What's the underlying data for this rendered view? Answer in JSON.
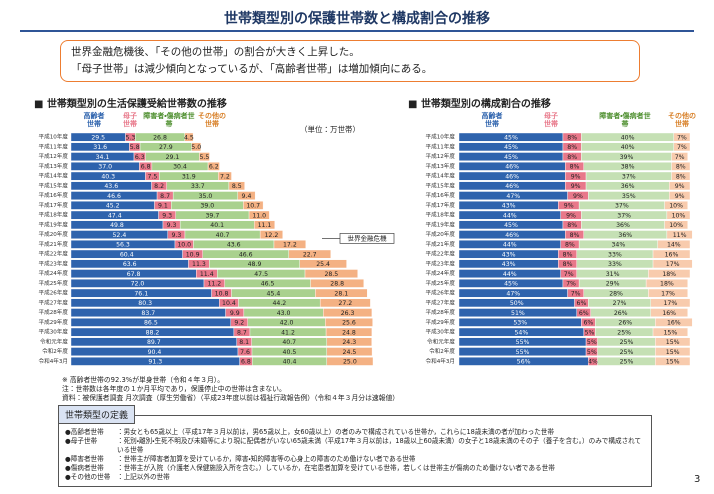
{
  "title": "世帯類型別の保護世帯数と構成割合の推移",
  "summary": [
    "世界金融危機後、「その他の世帯」の割合が大きく上昇した。",
    "「母子世帯」は減少傾向となっているが、「高齢者世帯」は増加傾向にある。"
  ],
  "chart_data": [
    {
      "type": "bar",
      "orientation": "horizontal",
      "stacked": true,
      "title": "世帯類型別の生活保護受給世帯数の推移",
      "unit": "（単位：万世帯）",
      "annotation": "世界金融危機",
      "categories": [
        "平成10年度",
        "平成11年度",
        "平成12年度",
        "平成13年度",
        "平成14年度",
        "平成15年度",
        "平成16年度",
        "平成17年度",
        "平成18年度",
        "平成19年度",
        "平成20年度",
        "平成21年度",
        "平成22年度",
        "平成23年度",
        "平成24年度",
        "平成25年度",
        "平成26年度",
        "平成27年度",
        "平成28年度",
        "平成29年度",
        "平成30年度",
        "令和元年度",
        "令和2年度",
        "令和4年3月"
      ],
      "xlim": [
        0,
        170
      ],
      "series": [
        {
          "name": "高齢者世帯",
          "color": "#2e63ad",
          "values": [
            29.5,
            31.6,
            34.1,
            37,
            40.3,
            43.6,
            46.6,
            45.2,
            47.4,
            49.8,
            52.4,
            56.3,
            60.4,
            63.6,
            67.8,
            72,
            76.1,
            80.3,
            83.7,
            86.5,
            88.2,
            89.7,
            90.4,
            91.3
          ],
          "value_labels": [
            "29.5",
            "31.6",
            "34.1",
            "37.0",
            "40.3",
            "43.6",
            "46.6",
            "45.2",
            "47.4",
            "49.8",
            "52.4",
            "56.3",
            "60.4",
            "63.6",
            "67.8",
            "72.0",
            "76.1",
            "80.3",
            "83.7",
            "86.5",
            "88.2",
            "89.7",
            "90.4",
            "91.3"
          ]
        },
        {
          "name": "母子世帯",
          "color": "#e8788a",
          "values": [
            5.3,
            5.8,
            6.3,
            6.8,
            7.5,
            8.2,
            8.7,
            9.1,
            9.3,
            9.3,
            9.3,
            10,
            10.9,
            11.3,
            11.4,
            11.2,
            10.8,
            10.4,
            9.9,
            9.2,
            8.7,
            8.1,
            7.6,
            6.8
          ],
          "value_labels": [
            "5.3",
            "5.8",
            "6.3",
            "6.8",
            "7.5",
            "8.2",
            "8.7",
            "9.1",
            "9.3",
            "9.3",
            "9.3",
            "10.0",
            "10.9",
            "11.3",
            "11.4",
            "11.2",
            "10.8",
            "10.4",
            "9.9",
            "9.2",
            "8.7",
            "8.1",
            "7.6",
            "6.8"
          ]
        },
        {
          "name": "障害者・傷病者世帯",
          "color": "#a9d18e",
          "values": [
            26.8,
            27.9,
            29.1,
            30.4,
            31.9,
            33.7,
            35,
            39,
            39.7,
            40.1,
            40.7,
            43.6,
            46.6,
            48.9,
            47.5,
            46.5,
            45.4,
            44.2,
            43,
            42,
            41.2,
            40.7,
            40.5,
            40.4
          ],
          "value_labels": [
            "26.8",
            "27.9",
            "29.1",
            "30.4",
            "31.9",
            "33.7",
            "35.0",
            "39.0",
            "39.7",
            "40.1",
            "40.7",
            "43.6",
            "46.6",
            "48.9",
            "47.5",
            "46.5",
            "45.4",
            "44.2",
            "43.0",
            "42.0",
            "41.2",
            "40.7",
            "40.5",
            "40.4"
          ]
        },
        {
          "name": "その他の世帯",
          "color": "#f4b183",
          "values": [
            4.5,
            5,
            5.5,
            6.2,
            7.2,
            8.5,
            9.4,
            10.7,
            11,
            11.1,
            12.2,
            17.2,
            22.7,
            25.4,
            28.5,
            28.8,
            28.1,
            27.2,
            26.3,
            25.6,
            24.8,
            24.3,
            24.5,
            25
          ],
          "value_labels": [
            "4.5",
            "5.0",
            "5.5",
            "6.2",
            "7.2",
            "8.5",
            "9.4",
            "10.7",
            "11.0",
            "11.1",
            "12.2",
            "17.2",
            "22.7",
            "25.4",
            "28.5",
            "28.8",
            "28.1",
            "27.2",
            "26.3",
            "25.6",
            "24.8",
            "24.3",
            "24.5",
            "25.0"
          ]
        }
      ]
    },
    {
      "type": "bar",
      "orientation": "horizontal",
      "stacked": true,
      "title": "世帯類型別の構成割合の推移",
      "categories": [
        "平成10年度",
        "平成11年度",
        "平成12年度",
        "平成13年度",
        "平成14年度",
        "平成15年度",
        "平成16年度",
        "平成17年度",
        "平成18年度",
        "平成19年度",
        "平成20年度",
        "平成21年度",
        "平成22年度",
        "平成23年度",
        "平成24年度",
        "平成25年度",
        "平成26年度",
        "平成27年度",
        "平成28年度",
        "平成29年度",
        "平成30年度",
        "令和元年度",
        "令和2年度",
        "令和4年3月"
      ],
      "xlim": [
        0,
        100
      ],
      "series": [
        {
          "name": "高齢者世帯",
          "color": "#2e63ad",
          "values": [
            45,
            45,
            45,
            46,
            46,
            46,
            47,
            43,
            44,
            45,
            46,
            44,
            43,
            43,
            44,
            45,
            47,
            50,
            51,
            53,
            54,
            55,
            55,
            56
          ],
          "value_labels": [
            "45%",
            "45%",
            "45%",
            "46%",
            "46%",
            "46%",
            "47%",
            "43%",
            "44%",
            "45%",
            "46%",
            "44%",
            "43%",
            "43%",
            "44%",
            "45%",
            "47%",
            "50%",
            "51%",
            "53%",
            "54%",
            "55%",
            "55%",
            "56%"
          ]
        },
        {
          "name": "母子世帯",
          "color": "#e8788a",
          "values": [
            8,
            8,
            8,
            8,
            9,
            9,
            9,
            9,
            9,
            8,
            8,
            8,
            8,
            8,
            7,
            7,
            7,
            6,
            6,
            6,
            5,
            5,
            5,
            4
          ],
          "value_labels": [
            "8%",
            "8%",
            "8%",
            "8%",
            "9%",
            "9%",
            "9%",
            "9%",
            "9%",
            "8%",
            "8%",
            "8%",
            "8%",
            "8%",
            "7%",
            "7%",
            "7%",
            "6%",
            "6%",
            "6%",
            "5%",
            "5%",
            "5%",
            "4%"
          ]
        },
        {
          "name": "障害者・傷病者世帯",
          "color": "#c5e0b4",
          "values": [
            40,
            40,
            39,
            38,
            37,
            36,
            35,
            37,
            37,
            36,
            36,
            34,
            33,
            33,
            31,
            29,
            28,
            27,
            26,
            26,
            25,
            25,
            25,
            25
          ],
          "value_labels": [
            "40%",
            "40%",
            "39%",
            "38%",
            "37%",
            "36%",
            "35%",
            "37%",
            "37%",
            "36%",
            "36%",
            "34%",
            "33%",
            "33%",
            "31%",
            "29%",
            "28%",
            "27%",
            "26%",
            "26%",
            "25%",
            "25%",
            "25%",
            "25%"
          ]
        },
        {
          "name": "その他の世帯",
          "color": "#f8cbad",
          "values": [
            7,
            7,
            7,
            8,
            8,
            9,
            9,
            10,
            10,
            10,
            11,
            14,
            16,
            17,
            18,
            18,
            17,
            17,
            16,
            16,
            15,
            15,
            15,
            15
          ],
          "value_labels": [
            "7%",
            "7%",
            "7%",
            "8%",
            "8%",
            "9%",
            "9%",
            "10%",
            "10%",
            "10%",
            "11%",
            "14%",
            "16%",
            "17%",
            "18%",
            "18%",
            "17%",
            "17%",
            "16%",
            "16%",
            "15%",
            "15%",
            "15%",
            "15%"
          ]
        }
      ]
    }
  ],
  "notes": [
    "※ 高齢者世帯の92.3%が単身世帯（令和４年３月）。",
    "注：世帯数は各年度の１か月平均であり，保護停止中の世帯は含まない。",
    "資料：被保護者調査 月次調査（厚生労働省）（平成23年度以前は福祉行政報告例）（令和４年３月分は速報値）"
  ],
  "definitions": {
    "title": "世帯類型の定義",
    "items": [
      {
        "term": "●高齢者世帯",
        "desc": "：男女とも65歳以上（平成17年３月以前は，男65歳以上，女60歳以上）の者のみで構成されている世帯か，これらに18歳未満の者が加わった世帯"
      },
      {
        "term": "●母子世帯",
        "desc": "：死別・離別・生死不明及び未婚等により現に配偶者がいない65歳未満（平成17年３月以前は，18歳以上60歳未満）の女子と18歳未満のその子（養子を含む。）のみで構成されている世帯"
      },
      {
        "term": "●障害者世帯",
        "desc": "：世帯主が障害者加算を受けているか，障害・知的障害等の心身上の障害のため働けない者である世帯"
      },
      {
        "term": "●傷病者世帯",
        "desc": "：世帯主が入院（介護老人保健施設入所を含む。）しているか，在宅患者加算を受けている世帯，若しくは世帯主が傷病のため働けない者である世帯"
      },
      {
        "term": "●その他の世帯",
        "desc": "：上記以外の世帯"
      }
    ]
  },
  "page_number": 3
}
